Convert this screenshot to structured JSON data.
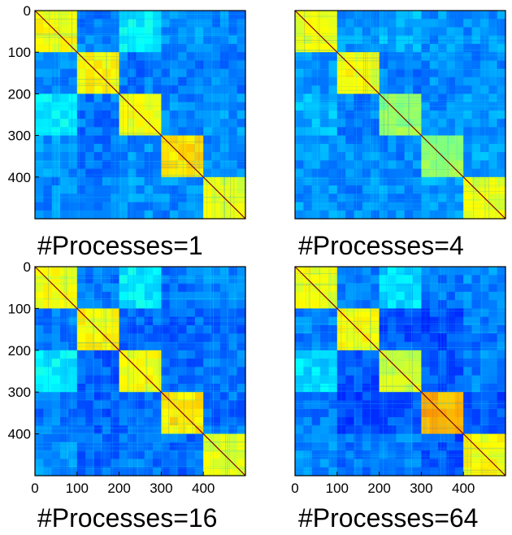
{
  "chart_data": [
    {
      "type": "heatmap",
      "title": "#Processes=1",
      "size": 500,
      "blocks": [
        0,
        100,
        200,
        300,
        400,
        500
      ],
      "yticks": [
        0,
        100,
        200,
        300,
        400
      ],
      "xticks": [],
      "colormap": "jet",
      "block_intensity": [
        [
          0.62,
          0.25,
          0.36,
          0.27,
          0.26
        ],
        [
          0.25,
          0.63,
          0.24,
          0.24,
          0.25
        ],
        [
          0.36,
          0.24,
          0.62,
          0.26,
          0.27
        ],
        [
          0.27,
          0.24,
          0.26,
          0.66,
          0.26
        ],
        [
          0.26,
          0.25,
          0.27,
          0.26,
          0.6
        ]
      ]
    },
    {
      "type": "heatmap",
      "title": "#Processes=4",
      "size": 500,
      "blocks": [
        0,
        100,
        200,
        300,
        400,
        500
      ],
      "yticks": [],
      "xticks": [],
      "colormap": "jet",
      "block_intensity": [
        [
          0.61,
          0.27,
          0.3,
          0.27,
          0.27
        ],
        [
          0.27,
          0.62,
          0.25,
          0.26,
          0.26
        ],
        [
          0.3,
          0.25,
          0.52,
          0.26,
          0.27
        ],
        [
          0.27,
          0.26,
          0.26,
          0.52,
          0.28
        ],
        [
          0.27,
          0.26,
          0.27,
          0.28,
          0.6
        ]
      ]
    },
    {
      "type": "heatmap",
      "title": "#Processes=16",
      "size": 500,
      "blocks": [
        0,
        100,
        200,
        300,
        400,
        500
      ],
      "yticks": [
        0,
        100,
        200,
        300,
        400
      ],
      "xticks": [
        0,
        100,
        200,
        300,
        400
      ],
      "colormap": "jet",
      "block_intensity": [
        [
          0.62,
          0.24,
          0.36,
          0.24,
          0.26
        ],
        [
          0.24,
          0.63,
          0.22,
          0.22,
          0.23
        ],
        [
          0.36,
          0.22,
          0.62,
          0.23,
          0.24
        ],
        [
          0.24,
          0.22,
          0.23,
          0.65,
          0.23
        ],
        [
          0.26,
          0.23,
          0.24,
          0.23,
          0.6
        ]
      ]
    },
    {
      "type": "heatmap",
      "title": "#Processes=64",
      "size": 500,
      "blocks": [
        0,
        100,
        200,
        300,
        400,
        500
      ],
      "yticks": [],
      "xticks": [
        0,
        100,
        200,
        300,
        400
      ],
      "colormap": "jet",
      "block_intensity": [
        [
          0.61,
          0.25,
          0.34,
          0.24,
          0.26
        ],
        [
          0.25,
          0.62,
          0.21,
          0.2,
          0.24
        ],
        [
          0.34,
          0.21,
          0.58,
          0.21,
          0.25
        ],
        [
          0.24,
          0.2,
          0.21,
          0.7,
          0.2
        ],
        [
          0.26,
          0.24,
          0.25,
          0.2,
          0.62
        ]
      ]
    }
  ]
}
